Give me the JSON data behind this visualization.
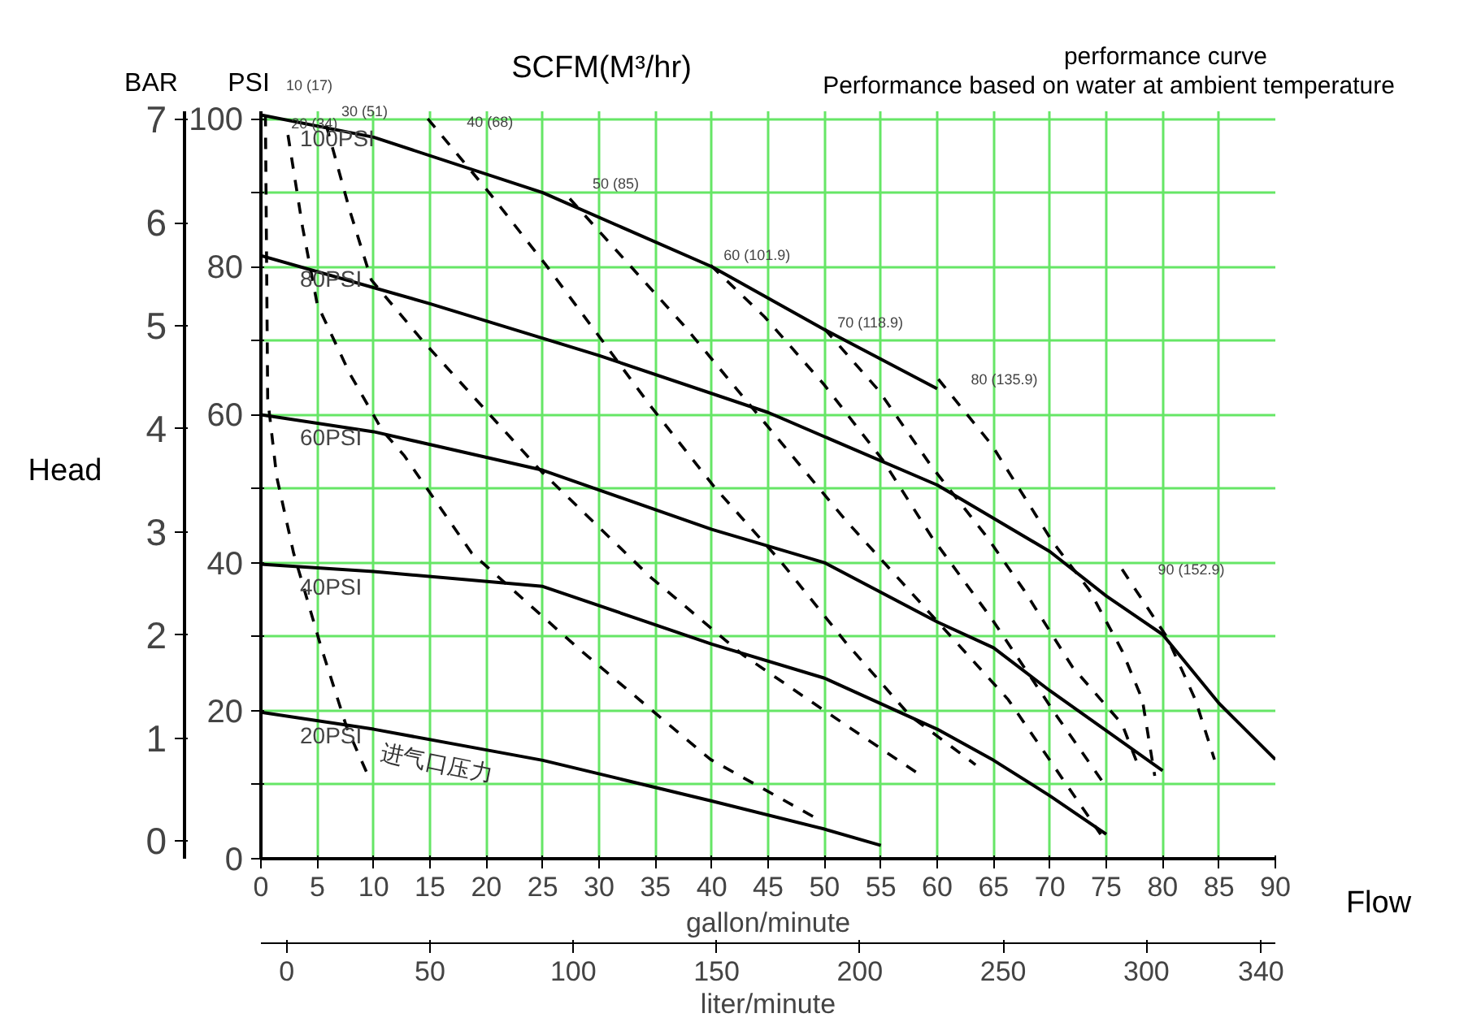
{
  "chart_data": {
    "type": "line",
    "title": "performance curve",
    "subtitle": "Performance based on water at ambient temperature",
    "xlabel": "gallon/minute",
    "ylabel": "PSI",
    "y2label": "BAR",
    "x2label": "liter/minute",
    "xlim": [
      0,
      90
    ],
    "xticks": [
      0,
      5,
      10,
      15,
      20,
      25,
      30,
      35,
      40,
      45,
      50,
      55,
      60,
      65,
      70,
      75,
      80,
      85,
      90
    ],
    "ylim": [
      0,
      101
    ],
    "yticks": [
      0,
      {
        "value": 10,
        "label": null
      },
      20,
      {
        "value": 30,
        "label": null
      },
      40,
      {
        "value": 50,
        "label": null
      },
      60,
      {
        "value": 70,
        "label": null
      },
      80,
      {
        "value": 90,
        "label": null
      },
      100
    ],
    "y2lim": [
      -0.17,
      7.08
    ],
    "y2ticks": [
      0,
      1,
      2,
      3,
      4,
      5,
      6,
      7
    ],
    "x2lim": [
      -9,
      345
    ],
    "x2ticks": [
      0,
      50,
      100,
      150,
      200,
      250,
      300,
      340
    ],
    "grid": true,
    "annotations": [
      "SCFM(M³/hr)",
      "Head",
      "Flow",
      "进气口压力"
    ],
    "series": [
      {
        "name": "100PSI",
        "color": "#000000",
        "line_style": "solid",
        "x": [
          0,
          10,
          25,
          40,
          50,
          60
        ],
        "values": [
          100.5,
          97.5,
          90,
          80,
          71.5,
          63.5
        ]
      },
      {
        "name": "80PSI",
        "color": "#000000",
        "line_style": "solid",
        "x": [
          0,
          15,
          30,
          45,
          60,
          70,
          75,
          80,
          85,
          90
        ],
        "values": [
          81.5,
          75,
          68,
          60.3,
          50.5,
          41.5,
          35.5,
          30.3,
          21,
          13.4
        ]
      },
      {
        "name": "60PSI",
        "color": "#000000",
        "line_style": "solid",
        "x": [
          0,
          10,
          25,
          40,
          50,
          60,
          65,
          70,
          75,
          80
        ],
        "values": [
          60,
          57.7,
          52.5,
          44.5,
          40,
          32,
          28.5,
          22.7,
          17.3,
          11.9
        ]
      },
      {
        "name": "40PSI",
        "color": "#000000",
        "line_style": "solid",
        "x": [
          0,
          10,
          25,
          40,
          50,
          60,
          65,
          70,
          75
        ],
        "values": [
          39.8,
          38.8,
          36.8,
          29,
          24.4,
          17.5,
          13.3,
          8.5,
          3.3
        ]
      },
      {
        "name": "20PSI",
        "color": "#000000",
        "line_style": "solid",
        "x": [
          0,
          10,
          25,
          40,
          50,
          55
        ],
        "values": [
          19.8,
          17.5,
          13.3,
          7.8,
          4,
          1.8
        ]
      },
      {
        "name": "10 (17)",
        "color": "#000000",
        "line_style": "dashed",
        "x": [
          0.4,
          0.6,
          1.4,
          2.9,
          5.3,
          7.6,
          9.4
        ],
        "values": [
          100.5,
          62.2,
          51.6,
          41.3,
          28.8,
          17.8,
          11.6
        ]
      },
      {
        "name": "20 (34)",
        "color": "#000000",
        "line_style": "dashed",
        "x": [
          2.4,
          3.7,
          5.0,
          7.9,
          10.8,
          12.7,
          18.7,
          28.4,
          39.9,
          49.7
        ],
        "values": [
          97.8,
          85.3,
          74.9,
          65.5,
          57.8,
          54.5,
          41.3,
          28.1,
          13.4,
          5.1
        ]
      },
      {
        "name": "30 (51)",
        "color": "#000000",
        "line_style": "dashed",
        "x": [
          5.8,
          7.9,
          9.8,
          14.4,
          24.9,
          34.6,
          42.8,
          50.0,
          58.6
        ],
        "values": [
          99.1,
          87.5,
          78.2,
          69.9,
          52.3,
          38.0,
          27.5,
          20.0,
          11.2
        ]
      },
      {
        "name": "40 (68)",
        "color": "#000000",
        "line_style": "dashed",
        "x": [
          14.8,
          20.2,
          25.2,
          29.8,
          34.6,
          40.3,
          46.1,
          51.9,
          57.6,
          63.4
        ],
        "values": [
          100.0,
          90.1,
          80.4,
          71.0,
          61.1,
          50.1,
          40.2,
          29.2,
          19.3,
          12.7
        ]
      },
      {
        "name": "50 (85)",
        "color": "#000000",
        "line_style": "dashed",
        "x": [
          27.4,
          37.5,
          44.7,
          51.9,
          59.1,
          66.3,
          74.5
        ],
        "values": [
          89.2,
          72.1,
          58.9,
          45.7,
          33.6,
          21.5,
          3.3
        ]
      },
      {
        "name": "60 (101.9)",
        "color": "#000000",
        "line_style": "dashed",
        "x": [
          39.9,
          44.7,
          50.0,
          55.2,
          59.5,
          64.8,
          70.6,
          74.9
        ],
        "values": [
          80.2,
          73.2,
          64.0,
          53.8,
          43.5,
          32.5,
          19.3,
          9.9
        ]
      },
      {
        "name": "70 (118.9)",
        "color": "#000000",
        "line_style": "dashed",
        "x": [
          50.0,
          54.8,
          59.5,
          64.4,
          67.7,
          72.0,
          76.4,
          77.8
        ],
        "values": [
          71.6,
          63.3,
          53.0,
          43.5,
          36.3,
          25.9,
          18.2,
          12.7
        ]
      },
      {
        "name": "80 (135.9)",
        "color": "#000000",
        "line_style": "dashed",
        "x": [
          60.1,
          64.8,
          70.2,
          73.5,
          76.4,
          78.2,
          79.3
        ],
        "values": [
          64.8,
          56.0,
          42.9,
          36.3,
          28.1,
          21.5,
          11.2
        ]
      },
      {
        "name": "90 (152.9)",
        "color": "#000000",
        "line_style": "dashed",
        "x": [
          76.4,
          80.4,
          82.9,
          84.6
        ],
        "values": [
          39.1,
          29.9,
          21.5,
          13.4
        ]
      }
    ]
  }
}
